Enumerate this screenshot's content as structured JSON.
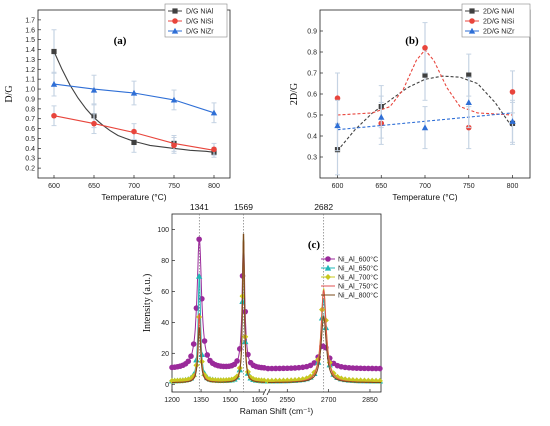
{
  "chart_data": [
    {
      "type": "scatter",
      "panel_label": "(a)",
      "xlabel": "Temperature (°C)",
      "ylabel": "D/G",
      "x": [
        600,
        650,
        700,
        750,
        800
      ],
      "xlim": [
        580,
        820
      ],
      "ylim": [
        0.1,
        1.8
      ],
      "xticks": [
        600,
        650,
        700,
        750,
        800
      ],
      "yticks": [
        0.2,
        0.3,
        0.4,
        0.5,
        0.6,
        0.7,
        0.8,
        0.9,
        1.0,
        1.1,
        1.2,
        1.3,
        1.4,
        1.5,
        1.6,
        1.7
      ],
      "legend_position": "top-right",
      "series": [
        {
          "name": "D/G NiAl",
          "color": "#404040",
          "marker": "square",
          "values": [
            1.38,
            0.73,
            0.46,
            0.45,
            0.36
          ],
          "errors": [
            0.22,
            0.12,
            0.1,
            0.08,
            0.05
          ],
          "fit": [
            [
              600,
              1.38
            ],
            [
              610,
              1.2
            ],
            [
              620,
              1.04
            ],
            [
              630,
              0.91
            ],
            [
              640,
              0.8
            ],
            [
              650,
              0.71
            ],
            [
              660,
              0.64
            ],
            [
              670,
              0.58
            ],
            [
              680,
              0.53
            ],
            [
              690,
              0.5
            ],
            [
              700,
              0.47
            ],
            [
              710,
              0.45
            ],
            [
              720,
              0.43
            ],
            [
              730,
              0.42
            ],
            [
              740,
              0.41
            ],
            [
              750,
              0.4
            ],
            [
              760,
              0.39
            ],
            [
              770,
              0.38
            ],
            [
              780,
              0.375
            ],
            [
              790,
              0.37
            ],
            [
              800,
              0.36
            ]
          ]
        },
        {
          "name": "D/G NiSi",
          "color": "#e8453c",
          "marker": "circle",
          "values": [
            0.73,
            0.65,
            0.57,
            0.43,
            0.39
          ],
          "errors": [
            0.1,
            0.1,
            0.08,
            0.08,
            0.06
          ],
          "fit": [
            [
              600,
              0.73
            ],
            [
              650,
              0.65
            ],
            [
              700,
              0.56
            ],
            [
              750,
              0.45
            ],
            [
              800,
              0.38
            ]
          ]
        },
        {
          "name": "D/G NiZr",
          "color": "#2f6fd6",
          "marker": "triangle",
          "values": [
            1.05,
            0.99,
            0.96,
            0.89,
            0.76
          ],
          "errors": [
            0.12,
            0.15,
            0.12,
            0.1,
            0.1
          ],
          "fit": [
            [
              600,
              1.05
            ],
            [
              650,
              1.0
            ],
            [
              700,
              0.96
            ],
            [
              750,
              0.89
            ],
            [
              800,
              0.76
            ]
          ]
        }
      ]
    },
    {
      "type": "scatter",
      "panel_label": "(b)",
      "xlabel": "Temperature (°C)",
      "ylabel": "2D/G",
      "x": [
        600,
        650,
        700,
        750,
        800
      ],
      "xlim": [
        580,
        820
      ],
      "ylim": [
        0.2,
        1.0
      ],
      "xticks": [
        600,
        650,
        700,
        750,
        800
      ],
      "yticks": [
        0.3,
        0.4,
        0.5,
        0.6,
        0.7,
        0.8,
        0.9
      ],
      "legend_position": "top-right",
      "series": [
        {
          "name": "2D/G NiAl",
          "color": "#404040",
          "marker": "square",
          "values": [
            0.335,
            0.54,
            0.69,
            0.69,
            0.46
          ],
          "errors": [
            0.12,
            0.1,
            0.12,
            0.1,
            0.1
          ],
          "fit": [
            [
              600,
              0.33
            ],
            [
              620,
              0.43
            ],
            [
              640,
              0.51
            ],
            [
              660,
              0.57
            ],
            [
              680,
              0.63
            ],
            [
              700,
              0.67
            ],
            [
              720,
              0.685
            ],
            [
              740,
              0.68
            ],
            [
              760,
              0.65
            ],
            [
              780,
              0.56
            ],
            [
              800,
              0.44
            ]
          ]
        },
        {
          "name": "2D/G NiSi",
          "color": "#e8453c",
          "marker": "circle",
          "values": [
            0.58,
            0.46,
            0.82,
            0.44,
            0.61
          ],
          "errors": [
            0.12,
            0.1,
            0.12,
            0.1,
            0.1
          ],
          "fit": [
            [
              600,
              0.5
            ],
            [
              640,
              0.51
            ],
            [
              660,
              0.54
            ],
            [
              675,
              0.62
            ],
            [
              690,
              0.76
            ],
            [
              700,
              0.81
            ],
            [
              710,
              0.76
            ],
            [
              725,
              0.63
            ],
            [
              740,
              0.54
            ],
            [
              760,
              0.51
            ],
            [
              800,
              0.5
            ]
          ]
        },
        {
          "name": "2D/G NiZr",
          "color": "#2f6fd6",
          "marker": "triangle",
          "values": [
            0.45,
            0.49,
            0.44,
            0.56,
            0.47
          ],
          "errors": [
            0.12,
            0.1,
            0.1,
            0.12,
            0.1
          ],
          "fit": [
            [
              600,
              0.43
            ],
            [
              800,
              0.51
            ]
          ]
        }
      ]
    },
    {
      "type": "line",
      "panel_label": "(c)",
      "xlabel": "Raman Shift (cm⁻¹)",
      "ylabel": "Intensity (a.u.)",
      "ylim": [
        -5,
        110
      ],
      "yticks": [
        0,
        20,
        40,
        60,
        80,
        100
      ],
      "xticks_left": [
        1200,
        1350,
        1500,
        1650
      ],
      "xticks_right": [
        2550,
        2700,
        2850
      ],
      "xlim_left": [
        1200,
        1680
      ],
      "xlim_right": [
        2480,
        2890
      ],
      "peaks": [
        1341,
        1569,
        2682
      ],
      "legend_position": "top-right",
      "series": [
        {
          "name": "Ni_Al_600°C",
          "color": "#9a2a9a",
          "marker": "circle",
          "peaks": [
            {
              "c": 1341,
              "a": 84,
              "w": 28
            },
            {
              "c": 1569,
              "a": 83,
              "w": 16
            },
            {
              "c": 2682,
              "a": 16,
              "w": 38
            }
          ],
          "base": 10
        },
        {
          "name": "Ni_Al_650°C",
          "color": "#20b8b8",
          "marker": "triangle",
          "peaks": [
            {
              "c": 1341,
              "a": 69,
              "w": 15
            },
            {
              "c": 1569,
              "a": 94,
              "w": 11
            },
            {
              "c": 2682,
              "a": 53,
              "w": 22
            }
          ],
          "base": 2
        },
        {
          "name": "Ni_Al_700°C",
          "color": "#c8c820",
          "marker": "diamond",
          "peaks": [
            {
              "c": 1341,
              "a": 42,
              "w": 17
            },
            {
              "c": 1569,
              "a": 93,
              "w": 12
            },
            {
              "c": 2682,
              "a": 60,
              "w": 22
            }
          ],
          "base": 2
        },
        {
          "name": "Ni_Al_750°C",
          "color": "#e05050",
          "marker": "none",
          "peaks": [
            {
              "c": 1341,
              "a": 45,
              "w": 16
            },
            {
              "c": 1569,
              "a": 93,
              "w": 12
            },
            {
              "c": 2682,
              "a": 60,
              "w": 22
            }
          ],
          "base": 1
        },
        {
          "name": "Ni_Al_800°C",
          "color": "#7a4a1a",
          "marker": "none",
          "peaks": [
            {
              "c": 1341,
              "a": 36,
              "w": 16
            },
            {
              "c": 1569,
              "a": 99,
              "w": 11
            },
            {
              "c": 2682,
              "a": 43,
              "w": 22
            }
          ],
          "base": 1
        }
      ]
    }
  ]
}
